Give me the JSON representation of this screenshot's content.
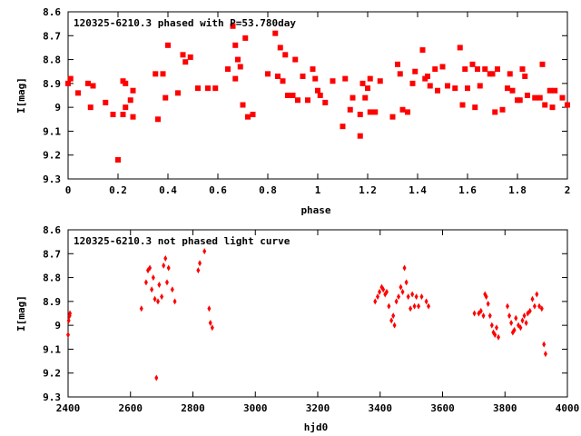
{
  "colors": {
    "points": "#ff0000",
    "axis": "#000000",
    "background": "#ffffff"
  },
  "chart_data": [
    {
      "type": "scatter",
      "title": "120325-6210.3 phased with P=53.780day",
      "xlabel": "phase",
      "ylabel": "I[mag]",
      "xlim": [
        0,
        2
      ],
      "ylim": [
        9.3,
        8.6
      ],
      "y_inverted": true,
      "grid": false,
      "marker": "square",
      "xticks": [
        0,
        0.2,
        0.4,
        0.6,
        0.8,
        1,
        1.2,
        1.4,
        1.6,
        1.8,
        2
      ],
      "xtick_labels": [
        "0",
        "0.2",
        "0.4",
        "0.6",
        "0.8",
        "1",
        "1.2",
        "1.4",
        "1.6",
        "1.8",
        "2"
      ],
      "yticks": [
        8.6,
        8.7,
        8.8,
        8.9,
        9,
        9.1,
        9.2,
        9.3
      ],
      "ytick_labels": [
        "8.6",
        "8.7",
        "8.8",
        "8.9",
        "9",
        "9.1",
        "9.2",
        "9.3"
      ],
      "x": [
        0.0,
        0.01,
        0.04,
        0.08,
        0.09,
        0.1,
        0.15,
        0.18,
        0.2,
        0.22,
        0.22,
        0.23,
        0.23,
        0.25,
        0.26,
        0.26,
        0.35,
        0.36,
        0.38,
        0.39,
        0.4,
        0.44,
        0.46,
        0.47,
        0.49,
        0.52,
        0.56,
        0.59,
        0.64,
        0.66,
        0.67,
        0.67,
        0.68,
        0.69,
        0.7,
        0.71,
        0.72,
        0.74,
        0.8,
        0.83,
        0.84,
        0.85,
        0.86,
        0.87,
        0.88,
        0.89,
        0.9,
        0.91,
        0.92,
        0.94,
        0.96,
        0.98,
        0.99,
        1.0,
        1.01,
        1.03,
        1.06,
        1.1,
        1.11,
        1.13,
        1.14,
        1.17,
        1.17,
        1.18,
        1.19,
        1.2,
        1.21,
        1.21,
        1.23,
        1.25,
        1.3,
        1.32,
        1.33,
        1.34,
        1.36,
        1.38,
        1.39,
        1.42,
        1.43,
        1.44,
        1.45,
        1.47,
        1.48,
        1.5,
        1.52,
        1.55,
        1.57,
        1.58,
        1.59,
        1.6,
        1.62,
        1.63,
        1.64,
        1.65,
        1.67,
        1.69,
        1.7,
        1.71,
        1.72,
        1.74,
        1.76,
        1.77,
        1.78,
        1.8,
        1.81,
        1.82,
        1.83,
        1.84,
        1.87,
        1.89,
        1.9,
        1.91,
        1.93,
        1.94,
        1.95,
        1.98,
        2.0
      ],
      "y": [
        8.9,
        8.88,
        8.94,
        8.9,
        9.0,
        8.91,
        8.98,
        9.03,
        9.22,
        9.03,
        8.89,
        8.9,
        9.0,
        8.97,
        8.93,
        9.04,
        8.86,
        9.05,
        8.86,
        8.96,
        8.74,
        8.94,
        8.78,
        8.81,
        8.79,
        8.92,
        8.92,
        8.92,
        8.84,
        8.66,
        8.88,
        8.74,
        8.8,
        8.83,
        8.99,
        8.71,
        9.04,
        9.03,
        8.86,
        8.69,
        8.87,
        8.75,
        8.89,
        8.78,
        8.95,
        8.95,
        8.95,
        8.8,
        8.97,
        8.87,
        8.97,
        8.84,
        8.88,
        8.93,
        8.95,
        8.98,
        8.89,
        9.08,
        8.88,
        9.01,
        8.96,
        9.12,
        9.03,
        8.9,
        8.96,
        8.92,
        8.88,
        9.02,
        9.02,
        8.89,
        9.04,
        8.82,
        8.86,
        9.01,
        9.02,
        8.9,
        8.85,
        8.76,
        8.88,
        8.87,
        8.91,
        8.84,
        8.93,
        8.83,
        8.91,
        8.92,
        8.75,
        8.99,
        8.84,
        8.92,
        8.82,
        9.0,
        8.84,
        8.91,
        8.84,
        8.86,
        8.86,
        9.02,
        8.84,
        9.01,
        8.92,
        8.86,
        8.93,
        8.97,
        8.97,
        8.84,
        8.87,
        8.95,
        8.96,
        8.96,
        8.82,
        8.99,
        8.93,
        9.0,
        8.93,
        8.96,
        8.99
      ]
    },
    {
      "type": "scatter",
      "title": "120325-6210.3 not phased light curve",
      "xlabel": "hjd0",
      "ylabel": "I[mag]",
      "xlim": [
        2400,
        4000
      ],
      "ylim": [
        9.3,
        8.6
      ],
      "y_inverted": true,
      "grid": false,
      "marker": "diamond",
      "xticks": [
        2400,
        2600,
        2800,
        3000,
        3200,
        3400,
        3600,
        3800,
        4000
      ],
      "xtick_labels": [
        "2400",
        "2600",
        "2800",
        "3000",
        "3200",
        "3400",
        "3600",
        "3800",
        "4000"
      ],
      "yticks": [
        8.6,
        8.7,
        8.8,
        8.9,
        9,
        9.1,
        9.2,
        9.3
      ],
      "ytick_labels": [
        "8.6",
        "8.7",
        "8.8",
        "8.9",
        "9",
        "9.1",
        "9.2",
        "9.3"
      ],
      "x": [
        2400,
        2402,
        2405,
        2406,
        2635,
        2650,
        2656,
        2662,
        2668,
        2673,
        2678,
        2683,
        2688,
        2692,
        2700,
        2706,
        2712,
        2717,
        2722,
        2734,
        2742,
        2817,
        2822,
        2837,
        2852,
        2856,
        2862,
        3384,
        3392,
        3398,
        3405,
        3410,
        3416,
        3421,
        3428,
        3436,
        3442,
        3446,
        3452,
        3459,
        3466,
        3472,
        3478,
        3484,
        3490,
        3497,
        3503,
        3510,
        3516,
        3523,
        3533,
        3548,
        3555,
        3702,
        3716,
        3723,
        3731,
        3736,
        3740,
        3746,
        3752,
        3758,
        3763,
        3768,
        3773,
        3779,
        3808,
        3814,
        3820,
        3825,
        3830,
        3835,
        3843,
        3850,
        3856,
        3862,
        3868,
        3873,
        3880,
        3888,
        3895,
        3902,
        3910,
        3918,
        3925,
        3930
      ],
      "y": [
        9.04,
        8.98,
        8.96,
        8.95,
        8.93,
        8.82,
        8.77,
        8.76,
        8.85,
        8.8,
        8.89,
        9.22,
        8.9,
        8.83,
        8.88,
        8.75,
        8.72,
        8.82,
        8.76,
        8.85,
        8.9,
        8.77,
        8.74,
        8.69,
        8.93,
        8.99,
        9.01,
        8.9,
        8.88,
        8.86,
        8.84,
        8.85,
        8.87,
        8.86,
        8.92,
        8.98,
        8.96,
        9.0,
        8.9,
        8.88,
        8.84,
        8.86,
        8.76,
        8.82,
        8.88,
        8.93,
        8.87,
        8.92,
        8.88,
        8.92,
        8.88,
        8.9,
        8.92,
        8.95,
        8.95,
        8.94,
        8.96,
        8.87,
        8.88,
        8.91,
        8.96,
        9.0,
        9.03,
        9.04,
        9.01,
        9.05,
        8.92,
        8.96,
        8.99,
        9.03,
        9.02,
        8.97,
        9.0,
        9.01,
        8.98,
        8.96,
        8.99,
        8.95,
        8.94,
        8.89,
        8.92,
        8.87,
        8.92,
        8.93,
        9.08,
        9.12
      ]
    }
  ]
}
